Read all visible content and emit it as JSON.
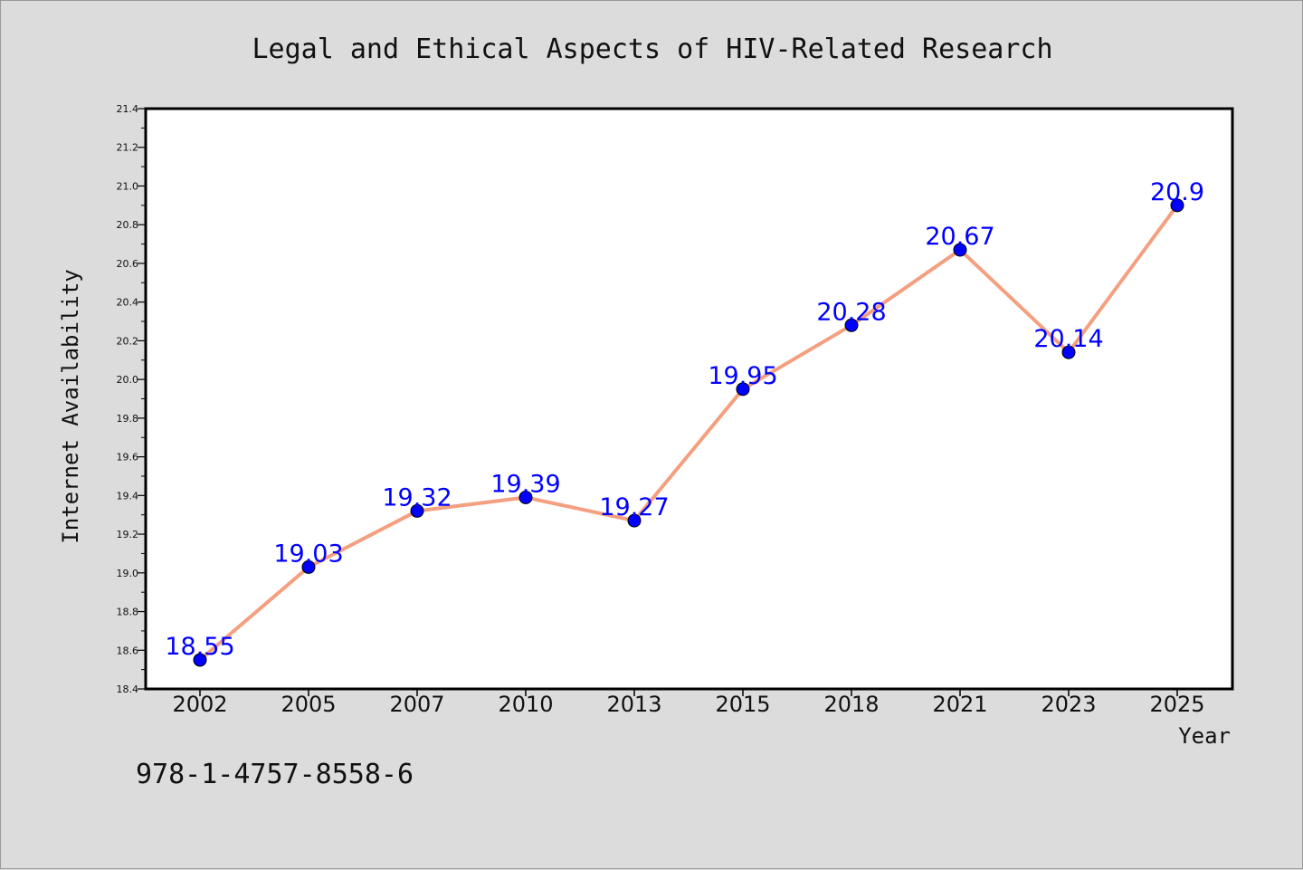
{
  "chart_data": {
    "type": "line",
    "title": "Legal and Ethical Aspects of HIV-Related Research",
    "xlabel": "Year",
    "ylabel": "Internet Availability",
    "categories": [
      "2002",
      "2005",
      "2007",
      "2010",
      "2013",
      "2015",
      "2018",
      "2021",
      "2023",
      "2025"
    ],
    "series": [
      {
        "values": [
          18.55,
          19.03,
          19.32,
          19.39,
          19.27,
          19.95,
          20.28,
          20.67,
          20.14,
          20.9
        ],
        "data_labels": [
          "18.55",
          "19.03",
          "19.32",
          "19.39",
          "19.27",
          "19.95",
          "20.28",
          "20.67",
          "20.14",
          "20.9"
        ],
        "line_color": "#f4a080",
        "marker_color": "#0000ff",
        "label_color": "#0000ff"
      }
    ],
    "ylim": [
      18.4,
      21.4
    ],
    "yticks": [
      "18.4",
      "18.6",
      "18.8",
      "19.0",
      "19.2",
      "19.4",
      "19.6",
      "19.8",
      "20.0",
      "20.2",
      "20.4",
      "20.6",
      "20.8",
      "21.0",
      "21.2",
      "21.4"
    ],
    "grid": false,
    "legend": false
  },
  "footer": {
    "isbn": "978-1-4757-8558-6"
  },
  "colors": {
    "background": "#dcdcdc",
    "plot_background": "#ffffff",
    "axis": "#000000"
  }
}
